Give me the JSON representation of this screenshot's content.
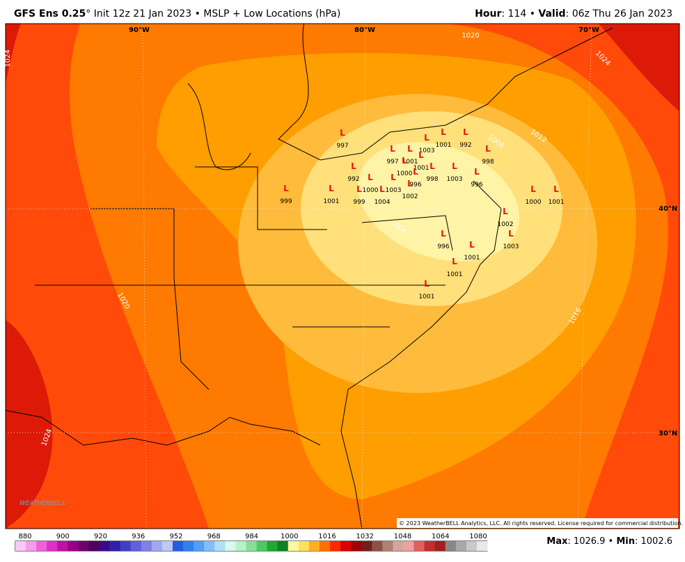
{
  "header": {
    "model": "GFS Ens 0.25",
    "degree": "°",
    "init": "Init 12z 21 Jan 2023 • MSLP + Low Locations (hPa)",
    "hour_label": "Hour",
    "hour": ": 114 • ",
    "valid_label": "Valid",
    "valid": ": 06z Thu 26 Jan 2023"
  },
  "map": {
    "longitudes": [
      "90°W",
      "80°W",
      "70°W"
    ],
    "latitudes": [
      "40°N",
      "30°N"
    ],
    "contour_labels": [
      "1024",
      "1020",
      "1024",
      "1012",
      "1008",
      "1004",
      "1020",
      "1016",
      "1024"
    ],
    "low_marker": "L",
    "lows": [
      997,
      999,
      1001,
      997,
      1001,
      1003,
      1001,
      992,
      998,
      1001,
      1000,
      998,
      1003,
      996,
      992,
      1000,
      1003,
      996,
      1004,
      999,
      1002,
      1000,
      1001,
      1002,
      1003,
      996,
      1001,
      1001,
      1001
    ],
    "copyright": "© 2023 WeatherBELL Analytics, LLC. All rights reserved. License required for commercial distribution.",
    "logo": "WEATHERBELL"
  },
  "colorbar": {
    "labels": [
      880,
      900,
      920,
      936,
      952,
      968,
      984,
      1000,
      1016,
      1032,
      1048,
      1064,
      1080
    ]
  },
  "footer": {
    "max_label": "Max",
    "max": ": 1026.9 • ",
    "min_label": "Min",
    "min": ": 1002.6"
  }
}
